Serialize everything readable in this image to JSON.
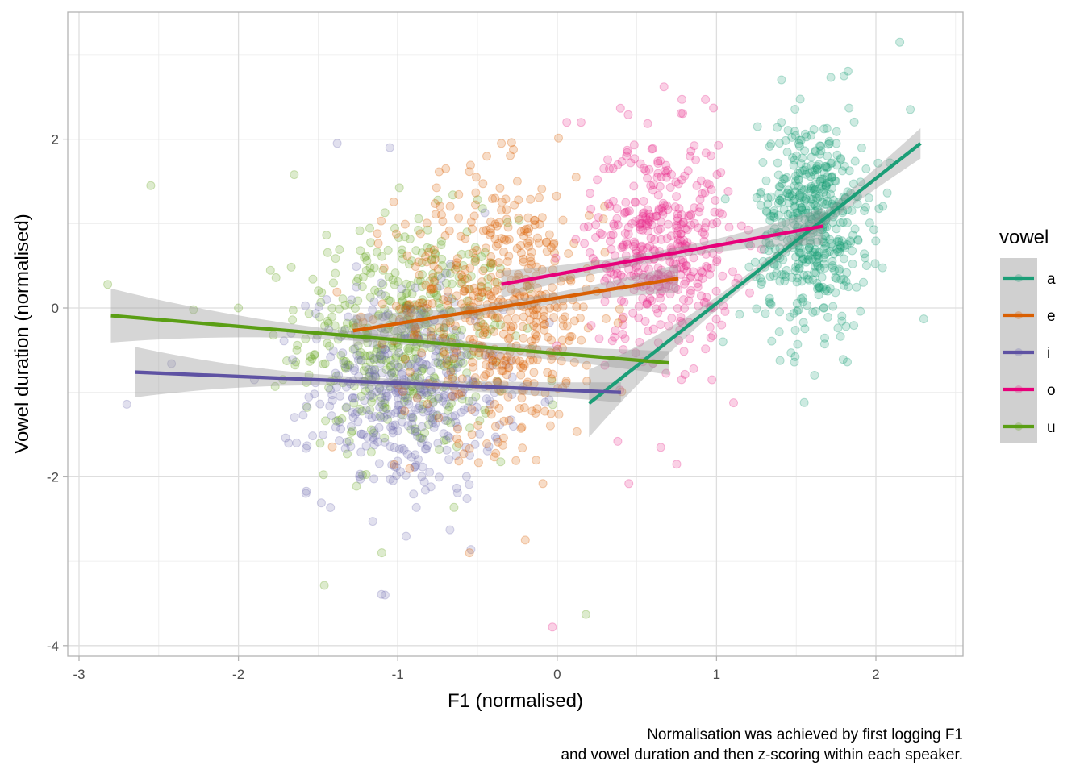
{
  "chart_data": {
    "type": "scatter",
    "title": "",
    "xlabel": "F1 (normalised)",
    "ylabel": "Vowel duration (normalised)",
    "caption_lines": [
      "Normalisation was achieved by first logging F1",
      "and vowel duration and then z-scoring within each speaker."
    ],
    "xlim": [
      -3.07,
      2.55
    ],
    "ylim": [
      -4.2,
      3.4
    ],
    "x_ticks": [
      -3,
      -2,
      -1,
      0,
      1,
      2
    ],
    "x_tick_labels": [
      "-3",
      "-2",
      "-1",
      "0",
      "1",
      "2"
    ],
    "y_ticks": [
      -4,
      -2,
      0,
      2
    ],
    "y_tick_labels": [
      "-4",
      "-2",
      "0",
      "2"
    ],
    "grid": true,
    "legend": {
      "title": "vowel",
      "position": "right",
      "entries": [
        {
          "label": "a",
          "color": "#1b9e77"
        },
        {
          "label": "e",
          "color": "#d95f02"
        },
        {
          "label": "i",
          "color": "#7570b3"
        },
        {
          "label": "o",
          "color": "#e7298a"
        },
        {
          "label": "u",
          "color": "#66a61e"
        }
      ]
    },
    "point_alpha": 0.22,
    "series": [
      {
        "name": "a",
        "color": "#1b9e77",
        "line_color": "#1b9e77",
        "cluster": {
          "x_mean": 1.6,
          "x_sd": 0.17,
          "y_mean": 1.0,
          "y_sd": 0.62,
          "n": 520
        },
        "outliers": [
          [
            2.15,
            3.15
          ],
          [
            2.3,
            -0.13
          ],
          [
            1.55,
            -1.12
          ],
          [
            1.8,
            2.75
          ],
          [
            1.04,
            -0.4
          ]
        ],
        "fit": {
          "x": [
            0.2,
            2.28
          ],
          "y": [
            -1.13,
            1.95
          ],
          "se_ends": [
            0.4,
            0.18
          ],
          "se_mid": 0.06
        }
      },
      {
        "name": "e",
        "color": "#d95f02",
        "line_color": "#d95f02",
        "cluster": {
          "x_mean": -0.35,
          "x_sd": 0.33,
          "y_mean": 0.0,
          "y_sd": 0.78,
          "n": 520
        },
        "outliers": [
          [
            -0.35,
            1.95
          ],
          [
            -0.25,
            1.5
          ],
          [
            -0.55,
            -2.9
          ],
          [
            -0.2,
            -2.75
          ]
        ],
        "fit": {
          "x": [
            -1.28,
            0.76
          ],
          "y": [
            -0.27,
            0.35
          ],
          "se_ends": [
            0.19,
            0.17
          ],
          "se_mid": 0.06
        }
      },
      {
        "name": "i",
        "color": "#7570b3",
        "line_color": "#5e52a3",
        "cluster": {
          "x_mean": -0.95,
          "x_sd": 0.3,
          "y_mean": -1.0,
          "y_sd": 0.62,
          "n": 430
        },
        "outliers": [
          [
            -2.7,
            -1.14
          ],
          [
            -2.42,
            -0.66
          ],
          [
            -1.38,
            1.95
          ],
          [
            -1.05,
            1.9
          ],
          [
            -1.08,
            -3.4
          ],
          [
            -1.9,
            -0.85
          ]
        ],
        "fit": {
          "x": [
            -2.65,
            0.4
          ],
          "y": [
            -0.76,
            -1.0
          ],
          "se_ends": [
            0.3,
            0.12
          ],
          "se_mid": 0.05
        }
      },
      {
        "name": "o",
        "color": "#e7298a",
        "line_color": "#e7007a",
        "cluster": {
          "x_mean": 0.65,
          "x_sd": 0.22,
          "y_mean": 0.75,
          "y_sd": 0.65,
          "n": 430
        },
        "outliers": [
          [
            -0.03,
            -3.78
          ],
          [
            0.45,
            -2.08
          ],
          [
            0.15,
            2.2
          ],
          [
            0.06,
            2.2
          ],
          [
            0.93,
            2.47
          ],
          [
            0.65,
            -1.65
          ],
          [
            0.75,
            -1.85
          ],
          [
            0.38,
            -1.58
          ]
        ],
        "fit": {
          "x": [
            -0.35,
            1.67
          ],
          "y": [
            0.28,
            0.97
          ],
          "se_ends": [
            0.16,
            0.22
          ],
          "se_mid": 0.06
        }
      },
      {
        "name": "u",
        "color": "#66a61e",
        "line_color": "#5a9e14",
        "cluster": {
          "x_mean": -0.95,
          "x_sd": 0.33,
          "y_mean": -0.35,
          "y_sd": 0.7,
          "n": 480
        },
        "outliers": [
          [
            -2.55,
            1.45
          ],
          [
            -2.82,
            0.28
          ],
          [
            -2.0,
            0.0
          ],
          [
            -1.65,
            1.58
          ],
          [
            0.18,
            -3.63
          ],
          [
            -1.1,
            -2.9
          ]
        ],
        "fit": {
          "x": [
            -2.8,
            0.7
          ],
          "y": [
            -0.09,
            -0.65
          ],
          "se_ends": [
            0.32,
            0.14
          ],
          "se_mid": 0.05
        }
      }
    ]
  }
}
